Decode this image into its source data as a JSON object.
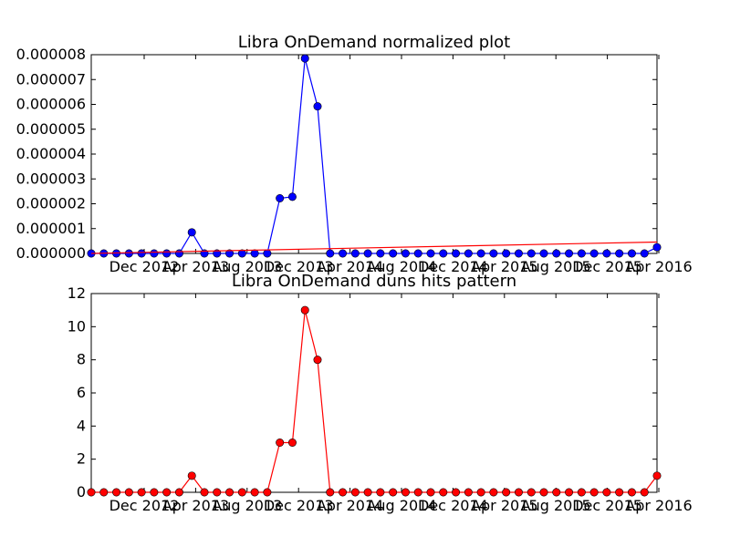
{
  "chart_data": [
    {
      "type": "line",
      "title": "Libra OnDemand normalized plot",
      "xlabel": "",
      "ylabel": "",
      "ylim": [
        0,
        8e-06
      ],
      "y_ticks": [
        "0.000000",
        "0.000001",
        "0.000002",
        "0.000003",
        "0.000004",
        "0.000005",
        "0.000006",
        "0.000007",
        "0.000008"
      ],
      "x_ticks": [
        "Dec 2012",
        "Apr 2013",
        "Aug 2013",
        "Dec 2013",
        "Apr 2014",
        "Aug 2014",
        "Dec 2014",
        "Apr 2015",
        "Aug 2015",
        "Dec 2015",
        "Apr 2016"
      ],
      "series": [
        {
          "color": "#0000ff",
          "marker": "circle",
          "values": [
            0,
            0,
            0,
            0,
            0,
            0,
            0,
            0,
            8.5e-07,
            0,
            0,
            0,
            0,
            0,
            0,
            2.22e-06,
            2.28e-06,
            7.85e-06,
            5.92e-06,
            0,
            0,
            0,
            0,
            0,
            0,
            0,
            0,
            0,
            0,
            0,
            0,
            0,
            0,
            0,
            0,
            0,
            0,
            0,
            0,
            0,
            0,
            0,
            0,
            0,
            0,
            2.5e-07
          ]
        },
        {
          "color": "#ff0000",
          "marker": "none",
          "trend": [
            0,
            4.6e-07
          ]
        }
      ]
    },
    {
      "type": "line",
      "title": "Libra OnDemand duns hits pattern",
      "xlabel": "",
      "ylabel": "",
      "ylim": [
        0,
        12
      ],
      "y_ticks": [
        "0",
        "2",
        "4",
        "6",
        "8",
        "10",
        "12"
      ],
      "x_ticks": [
        "Dec 2012",
        "Apr 2013",
        "Aug 2013",
        "Dec 2013",
        "Apr 2014",
        "Aug 2014",
        "Dec 2014",
        "Apr 2015",
        "Aug 2015",
        "Dec 2015",
        "Apr 2016"
      ],
      "series": [
        {
          "color": "#ff0000",
          "marker": "circle",
          "values": [
            0,
            0,
            0,
            0,
            0,
            0,
            0,
            0,
            1,
            0,
            0,
            0,
            0,
            0,
            0,
            3,
            3,
            11,
            8,
            0,
            0,
            0,
            0,
            0,
            0,
            0,
            0,
            0,
            0,
            0,
            0,
            0,
            0,
            0,
            0,
            0,
            0,
            0,
            0,
            0,
            0,
            0,
            0,
            0,
            0,
            1
          ]
        }
      ]
    }
  ]
}
